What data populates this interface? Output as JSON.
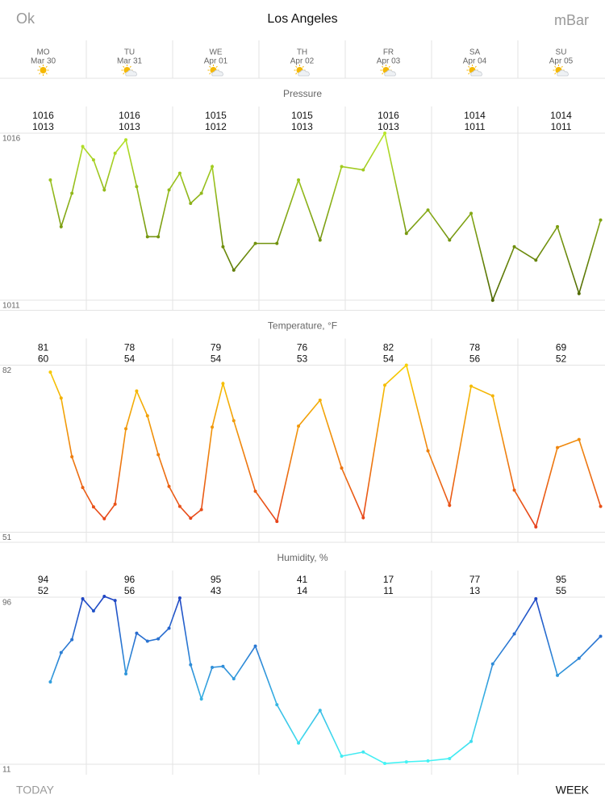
{
  "header": {
    "left": "Ok",
    "title": "Los Angeles",
    "right": "mBar"
  },
  "days": [
    {
      "day": "MO",
      "date": "Mar 30",
      "icon": "sun"
    },
    {
      "day": "TU",
      "date": "Mar 31",
      "icon": "partly-cloudy"
    },
    {
      "day": "WE",
      "date": "Apr 01",
      "icon": "partly-cloudy"
    },
    {
      "day": "TH",
      "date": "Apr 02",
      "icon": "partly-cloudy"
    },
    {
      "day": "FR",
      "date": "Apr 03",
      "icon": "partly-cloudy"
    },
    {
      "day": "SA",
      "date": "Apr 04",
      "icon": "partly-cloudy"
    },
    {
      "day": "SU",
      "date": "Apr 05",
      "icon": "partly-cloudy"
    }
  ],
  "chart_data": [
    {
      "type": "line",
      "title": "Pressure",
      "daily_high": [
        1016,
        1016,
        1015,
        1015,
        1016,
        1014,
        1014
      ],
      "daily_low": [
        1013,
        1013,
        1012,
        1013,
        1013,
        1011,
        1011
      ],
      "xlim": [
        0,
        168
      ],
      "ylim": [
        1011,
        1016
      ],
      "yticks": [
        1011,
        1016
      ],
      "colors": {
        "high": "#b8e62a",
        "low": "#4d6600"
      },
      "x": [
        14,
        17,
        20,
        23,
        26,
        29,
        32,
        35,
        38,
        41,
        44,
        47,
        50,
        53,
        56,
        59,
        62,
        65,
        71,
        77,
        83,
        89,
        95,
        101,
        107,
        113,
        119,
        125,
        131,
        137,
        143,
        149,
        155,
        161,
        167
      ],
      "values": [
        1014.6,
        1013.2,
        1014.2,
        1015.6,
        1015.2,
        1014.3,
        1015.4,
        1015.8,
        1014.4,
        1012.9,
        1012.9,
        1014.3,
        1014.8,
        1013.9,
        1014.2,
        1015.0,
        1012.6,
        1011.9,
        1012.7,
        1012.7,
        1014.6,
        1012.8,
        1015.0,
        1014.9,
        1016.0,
        1013.0,
        1013.7,
        1012.8,
        1013.6,
        1011.0,
        1012.6,
        1012.2,
        1013.2,
        1011.2,
        1013.4
      ]
    },
    {
      "type": "line",
      "title": "Temperature, °F",
      "daily_high": [
        81,
        78,
        79,
        76,
        82,
        78,
        69
      ],
      "daily_low": [
        60,
        54,
        54,
        53,
        54,
        56,
        52
      ],
      "xlim": [
        0,
        168
      ],
      "ylim": [
        51,
        82
      ],
      "yticks": [
        51,
        82
      ],
      "colors": {
        "high": "#f7cf00",
        "low": "#e63a1c"
      },
      "x": [
        14,
        17,
        20,
        23,
        26,
        29,
        32,
        35,
        38,
        41,
        44,
        47,
        50,
        53,
        56,
        59,
        62,
        65,
        71,
        77,
        83,
        89,
        95,
        101,
        107,
        113,
        119,
        125,
        131,
        137,
        143,
        149,
        155,
        161,
        167
      ],
      "values": [
        80.7,
        75.9,
        65.0,
        59.3,
        55.7,
        53.5,
        56.2,
        70.2,
        77.2,
        72.6,
        65.4,
        59.5,
        55.8,
        53.6,
        55.2,
        70.5,
        78.6,
        71.7,
        58.6,
        53.0,
        70.7,
        75.5,
        62.9,
        53.7,
        78.3,
        82.0,
        66.1,
        56.0,
        78.1,
        76.3,
        58.8,
        52.0,
        66.7,
        68.2,
        55.8
      ]
    },
    {
      "type": "line",
      "title": "Humidity, %",
      "daily_high": [
        94,
        96,
        95,
        41,
        17,
        77,
        95
      ],
      "daily_low": [
        52,
        56,
        43,
        14,
        11,
        13,
        55
      ],
      "xlim": [
        0,
        168
      ],
      "ylim": [
        11,
        96
      ],
      "yticks": [
        11,
        96
      ],
      "colors": {
        "high": "#1f45c4",
        "low": "#45f5f5"
      },
      "x": [
        14,
        17,
        20,
        23,
        26,
        29,
        32,
        35,
        38,
        41,
        44,
        47,
        50,
        53,
        56,
        59,
        62,
        65,
        71,
        77,
        83,
        89,
        95,
        101,
        107,
        113,
        119,
        125,
        131,
        137,
        143,
        149,
        155,
        161,
        167
      ],
      "values": [
        52.9,
        67.8,
        74.4,
        95.2,
        89.0,
        96.4,
        94.3,
        57.0,
        77.7,
        73.6,
        74.8,
        80.2,
        95.6,
        61.6,
        44.2,
        60.3,
        60.8,
        54.5,
        71.1,
        41.3,
        21.8,
        38.4,
        15.1,
        17.2,
        11.4,
        12.2,
        12.7,
        13.9,
        22.6,
        62.0,
        77.3,
        95.2,
        56.2,
        64.9,
        76.1
      ]
    }
  ],
  "footer": {
    "left": "TODAY",
    "right": "WEEK"
  }
}
